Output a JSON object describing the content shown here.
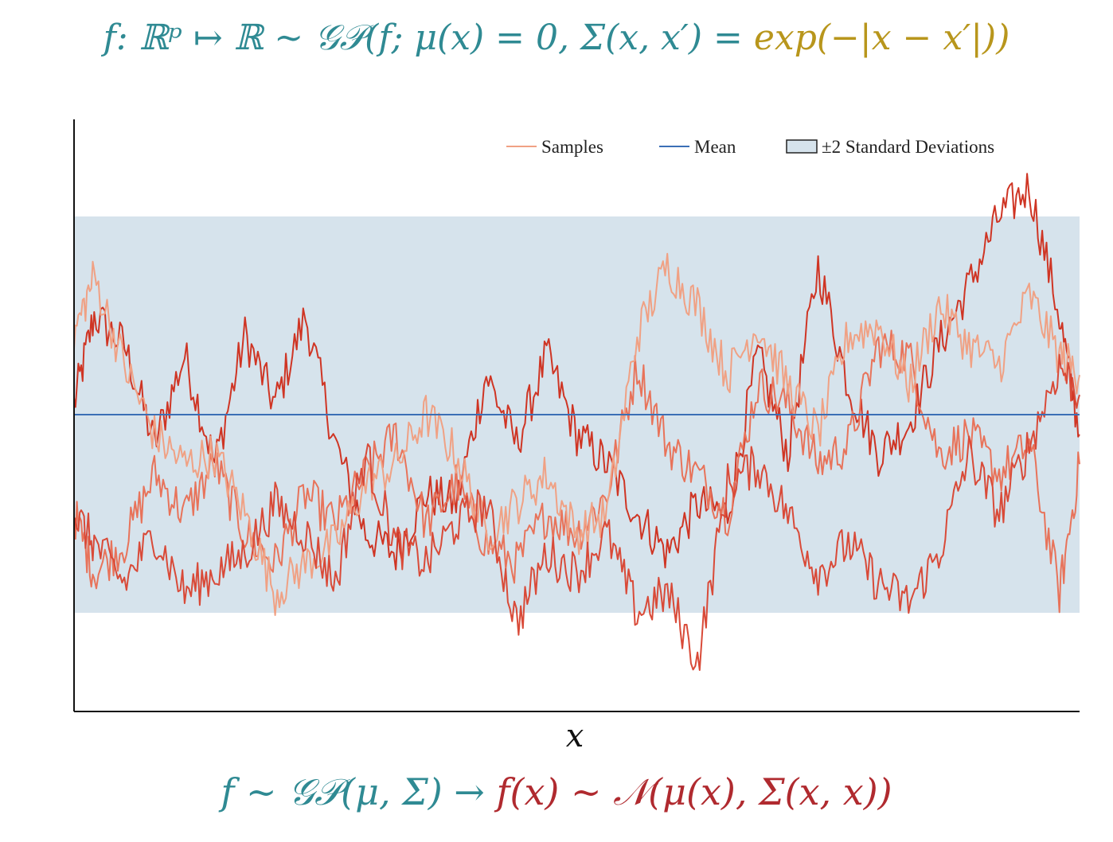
{
  "equation_top": {
    "text": "f: ℝᵖ ↦ ℝ ~ 𝒢𝒫(f; μ(x) = 0, Σ(x, x′) = ",
    "kernel": "exp(−|x − x′|))"
  },
  "equation_bottom": {
    "lhs": "f ~ 𝒢𝒫(μ, Σ) → ",
    "rhs": "f(x) ~ 𝒩(μ(x), Σ(x, x))"
  },
  "colors": {
    "band": "#d6e3ec",
    "mean": "#3b6fb6",
    "samples": [
      "#cf3524",
      "#e8735a",
      "#f0a184",
      "#d94a38"
    ],
    "teal": "#2f8a93",
    "gold": "#b8961c",
    "red": "#b02a2f"
  },
  "chart_data": {
    "type": "line",
    "xlabel": "x",
    "ylabel": "",
    "xlim": [
      0,
      1
    ],
    "ylim": [
      -3.0,
      3.0
    ],
    "grid": false,
    "legend": {
      "placement": "top-right",
      "entries": [
        "Samples",
        "Mean",
        "±2 Standard Deviations"
      ]
    },
    "mean": 0,
    "band": [
      -2,
      2
    ],
    "sample_count": 4,
    "samples": [
      {
        "x": [
          0.0,
          0.02,
          0.05,
          0.08,
          0.11,
          0.14,
          0.17,
          0.2,
          0.23,
          0.26,
          0.29,
          0.32,
          0.35,
          0.38,
          0.41,
          0.44,
          0.47,
          0.5,
          0.53,
          0.56,
          0.59,
          0.62,
          0.65,
          0.68,
          0.71,
          0.74,
          0.77,
          0.8,
          0.83,
          0.86,
          0.89,
          0.92,
          0.95,
          0.98,
          1.0
        ],
        "y": [
          0.1,
          1.0,
          0.7,
          -0.3,
          0.6,
          -0.5,
          0.8,
          0.1,
          1.0,
          -0.3,
          -1.2,
          -1.4,
          -0.8,
          -0.9,
          0.4,
          -0.3,
          0.6,
          -0.2,
          -0.5,
          -1.0,
          -1.4,
          -0.9,
          -1.0,
          0.6,
          -0.4,
          1.5,
          0.3,
          -0.4,
          -0.1,
          0.7,
          1.3,
          2.0,
          2.3,
          1.0,
          -0.2
        ]
      },
      {
        "x": [
          0.0,
          0.02,
          0.05,
          0.08,
          0.11,
          0.14,
          0.17,
          0.2,
          0.23,
          0.26,
          0.29,
          0.32,
          0.35,
          0.38,
          0.41,
          0.44,
          0.47,
          0.5,
          0.53,
          0.56,
          0.59,
          0.62,
          0.65,
          0.68,
          0.71,
          0.74,
          0.77,
          0.8,
          0.83,
          0.86,
          0.89,
          0.92,
          0.95,
          0.98,
          1.0
        ],
        "y": [
          -1.0,
          -1.6,
          -1.3,
          -0.6,
          -1.0,
          -0.5,
          -1.2,
          -1.5,
          -0.8,
          -1.1,
          -0.6,
          -0.2,
          -1.1,
          -0.7,
          -1.3,
          -1.5,
          -1.0,
          -1.2,
          -0.8,
          0.5,
          -0.3,
          -0.6,
          -1.0,
          0.3,
          0.1,
          -0.5,
          -0.3,
          0.7,
          0.6,
          -0.4,
          -0.2,
          -0.6,
          -0.3,
          -1.8,
          -0.5
        ]
      },
      {
        "x": [
          0.0,
          0.02,
          0.05,
          0.08,
          0.11,
          0.14,
          0.17,
          0.2,
          0.23,
          0.26,
          0.29,
          0.32,
          0.35,
          0.38,
          0.41,
          0.44,
          0.47,
          0.5,
          0.53,
          0.56,
          0.59,
          0.62,
          0.65,
          0.68,
          0.71,
          0.74,
          0.77,
          0.8,
          0.83,
          0.86,
          0.89,
          0.92,
          0.95,
          0.98,
          1.0
        ],
        "y": [
          0.8,
          1.4,
          0.5,
          -0.2,
          -0.5,
          -0.4,
          -1.0,
          -1.8,
          -1.5,
          -1.3,
          -0.7,
          -0.5,
          0.0,
          -0.4,
          -1.2,
          -0.9,
          -0.6,
          -1.2,
          -1.0,
          0.8,
          1.5,
          1.1,
          0.4,
          0.9,
          0.3,
          -0.2,
          0.8,
          0.9,
          0.3,
          1.1,
          0.7,
          0.5,
          1.2,
          0.6,
          0.4
        ]
      },
      {
        "x": [
          0.0,
          0.02,
          0.05,
          0.08,
          0.11,
          0.14,
          0.17,
          0.2,
          0.23,
          0.26,
          0.29,
          0.32,
          0.35,
          0.38,
          0.41,
          0.44,
          0.47,
          0.5,
          0.53,
          0.56,
          0.59,
          0.62,
          0.65,
          0.68,
          0.71,
          0.74,
          0.77,
          0.8,
          0.83,
          0.86,
          0.89,
          0.92,
          0.95,
          0.98,
          1.0
        ],
        "y": [
          -1.0,
          -1.3,
          -1.7,
          -1.2,
          -1.8,
          -1.6,
          -1.4,
          -0.9,
          -1.2,
          -1.7,
          -0.4,
          -1.3,
          -1.5,
          -1.1,
          -0.9,
          -2.1,
          -1.4,
          -1.6,
          -1.2,
          -2.0,
          -1.8,
          -2.5,
          -0.7,
          -0.5,
          -1.0,
          -1.6,
          -1.3,
          -1.7,
          -1.9,
          -1.4,
          -0.4,
          -1.0,
          -0.3,
          0.5,
          0.2
        ]
      }
    ]
  }
}
